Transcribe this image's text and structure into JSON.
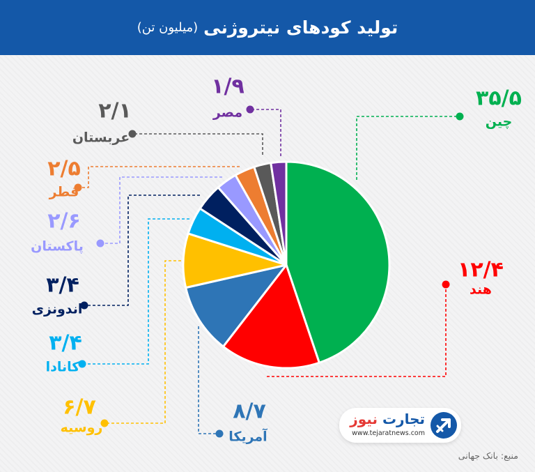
{
  "header": {
    "title": "تولید کودهای نیتروژنی",
    "subtitle": "(میلیون تن)"
  },
  "chart_data": {
    "type": "pie",
    "title": "تولید کودهای نیتروژنی",
    "unit": "(میلیون تن)",
    "slices": [
      {
        "label": "چین",
        "value": 35.5,
        "value_text": "۳۵/۵",
        "color": "#00b050"
      },
      {
        "label": "هند",
        "value": 12.4,
        "value_text": "۱۲/۴",
        "color": "#ff0000"
      },
      {
        "label": "آمریکا",
        "value": 8.7,
        "value_text": "۸/۷",
        "color": "#2e75b6"
      },
      {
        "label": "روسیه",
        "value": 6.7,
        "value_text": "۶/۷",
        "color": "#ffc000"
      },
      {
        "label": "کانادا",
        "value": 3.4,
        "value_text": "۳/۴",
        "color": "#00b0f0"
      },
      {
        "label": "اندونزی",
        "value": 3.4,
        "value_text": "۳/۴",
        "color": "#002060"
      },
      {
        "label": "پاکستان",
        "value": 2.6,
        "value_text": "۲/۶",
        "color": "#9999ff"
      },
      {
        "label": "قطر",
        "value": 2.5,
        "value_text": "۲/۵",
        "color": "#ed7d31"
      },
      {
        "label": "عربستان",
        "value": 2.1,
        "value_text": "۲/۱",
        "color": "#595959"
      },
      {
        "label": "مصر",
        "value": 1.9,
        "value_text": "۱/۹",
        "color": "#7030a0"
      }
    ]
  },
  "brand": {
    "name_part1": "تجارت",
    "name_part2": "نیوز",
    "website": "www.tejaratnews.com"
  },
  "source": "منبع: بانک جهانی"
}
